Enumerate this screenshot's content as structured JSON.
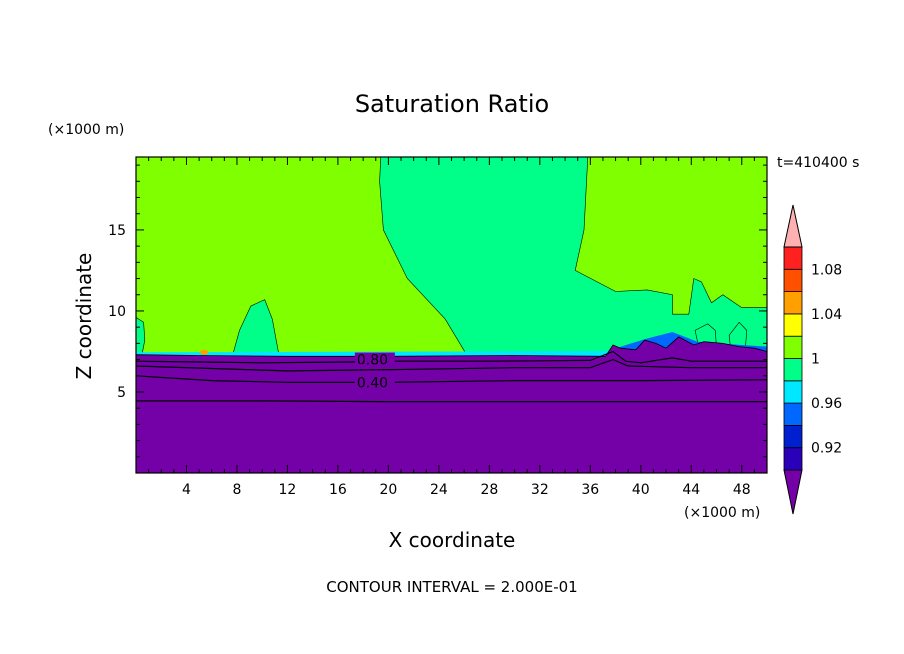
{
  "chart_data": {
    "type": "heatmap",
    "title": "Saturation Ratio",
    "xlabel": "X coordinate",
    "ylabel": "Z coordinate",
    "x_unit": "(×1000 m)",
    "y_unit": "(×1000 m)",
    "time_label": "t=410400 s",
    "footer": "CONTOUR INTERVAL = 2.000E-01",
    "xlim": [
      0,
      50
    ],
    "ylim": [
      0,
      19.5
    ],
    "x_ticks": [
      4,
      8,
      12,
      16,
      20,
      24,
      28,
      32,
      36,
      40,
      44,
      48
    ],
    "y_ticks": [
      5,
      10,
      15
    ],
    "contour_labels": [
      {
        "text": "0.80",
        "x": 17.5,
        "z": 7.0
      },
      {
        "text": "0.40",
        "x": 17.5,
        "z": 5.6
      }
    ],
    "colorbar": {
      "labels": [
        "1.08",
        "1.04",
        "1",
        "0.96",
        "0.92"
      ],
      "colors": [
        "#7400a8",
        "#2a00b8",
        "#0020d0",
        "#0068ff",
        "#00e8ff",
        "#00ff88",
        "#80ff00",
        "#ffff00",
        "#ffa000",
        "#ff5000",
        "#ff2020",
        "#ffb0b0"
      ]
    },
    "regions": {
      "near_saturated_green": "#80ff00",
      "slightly_subsaturated": "#00ff88",
      "dry_layer": "#7400a8"
    }
  }
}
